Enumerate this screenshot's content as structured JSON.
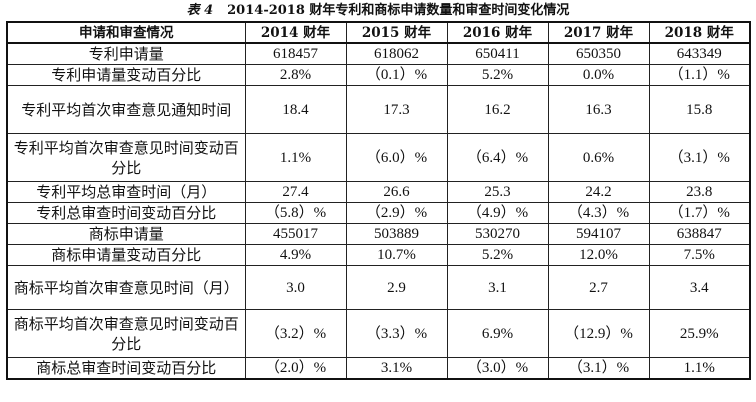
{
  "table_label": "表 4",
  "title": "2014-2018 财年专利和商标申请数量和审查时间变化情况",
  "header": [
    "申请和审查情况",
    "2014 财年",
    "2015 财年",
    "2016 财年",
    "2017 财年",
    "2018 财年"
  ],
  "rows": [
    {
      "name": "专利申请量",
      "values": [
        "618457",
        "618062",
        "650411",
        "650350",
        "643349"
      ]
    },
    {
      "name": "专利申请量变动百分比",
      "values": [
        "2.8%",
        "（0.1）%",
        "5.2%",
        "0.0%",
        "（1.1）%"
      ]
    },
    {
      "name": "专利平均首次审查意见通知时间",
      "values": [
        "18.4",
        "17.3",
        "16.2",
        "16.3",
        "15.8"
      ]
    },
    {
      "name": "专利平均首次审查意见时间变动百分比",
      "values": [
        "1.1%",
        "（6.0）%",
        "（6.4）%",
        "0.6%",
        "（3.1）%"
      ]
    },
    {
      "name": "专利平均总审查时间（月）",
      "values": [
        "27.4",
        "26.6",
        "25.3",
        "24.2",
        "23.8"
      ]
    },
    {
      "name": "专利总审查时间变动百分比",
      "values": [
        "（5.8）%",
        "（2.9）%",
        "（4.9）%",
        "（4.3）%",
        "（1.7）%"
      ]
    },
    {
      "name": "商标申请量",
      "values": [
        "455017",
        "503889",
        "530270",
        "594107",
        "638847"
      ]
    },
    {
      "name": "商标申请量变动百分比",
      "values": [
        "4.9%",
        "10.7%",
        "5.2%",
        "12.0%",
        "7.5%"
      ]
    },
    {
      "name": "商标平均首次审查意见时间（月）",
      "values": [
        "3.0",
        "2.9",
        "3.1",
        "2.7",
        "3.4"
      ]
    },
    {
      "name": "商标平均首次审查意见时间变动百分比",
      "values": [
        "（3.2）%",
        "（3.3）%",
        "6.9%",
        "（12.9）%",
        "25.9%"
      ]
    },
    {
      "name": "商标总审查时间变动百分比",
      "values": [
        "（2.0）%",
        "3.1%",
        "（3.0）%",
        "（3.1）%",
        "1.1%"
      ]
    }
  ]
}
